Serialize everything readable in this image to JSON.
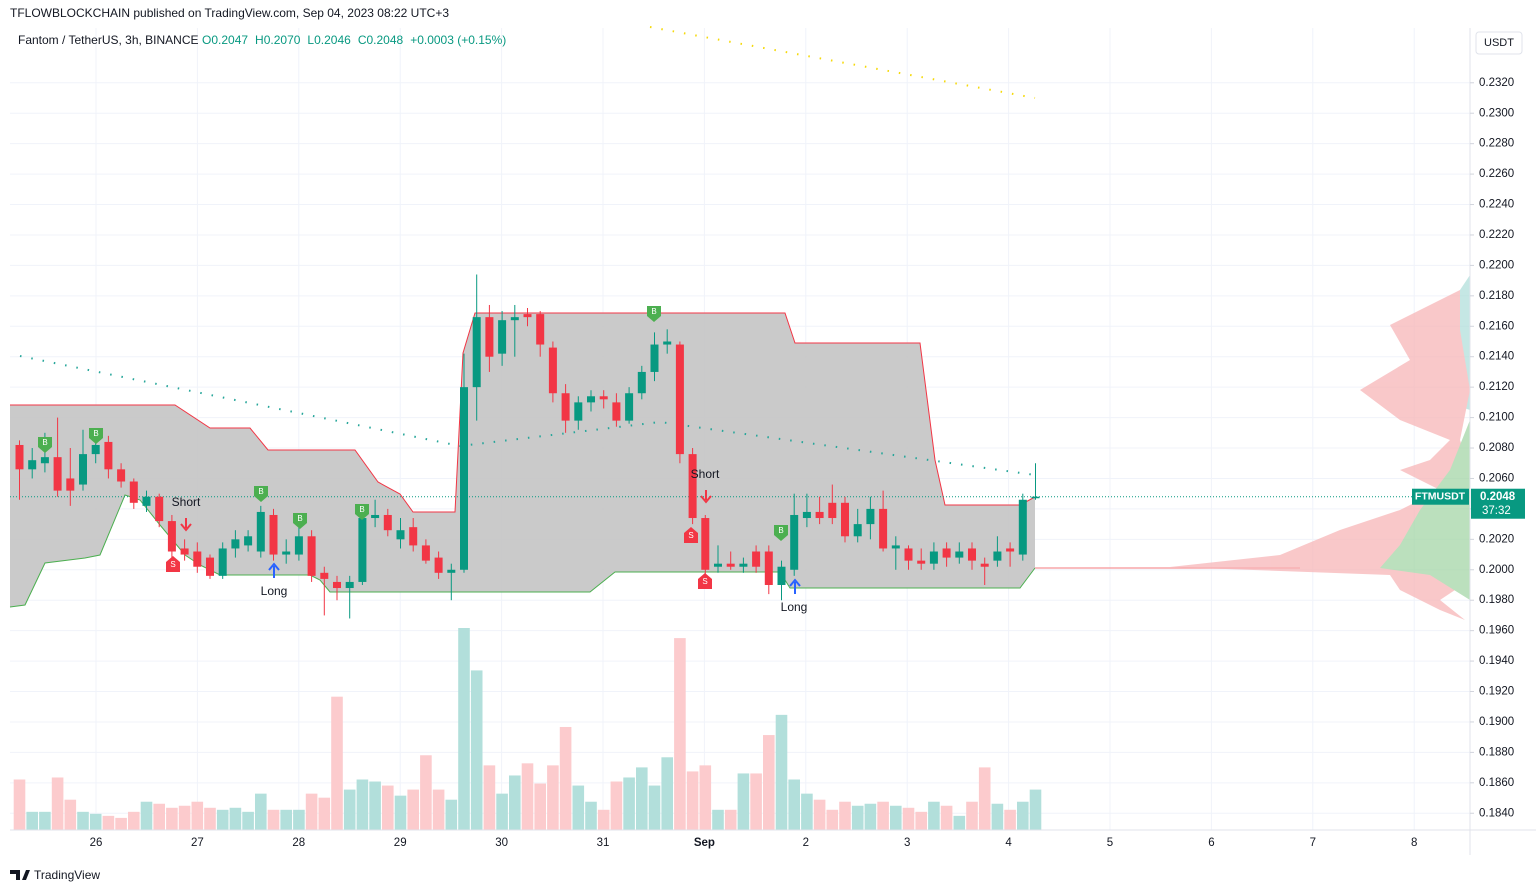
{
  "chart_data": {
    "type": "candlestick",
    "title": "TFLOWBLOCKCHAIN published on TradingView.com, Sep 04, 2023 08:22 UTC+3",
    "symbol": "Fantom / TetherUS, 3h, BINANCE",
    "ohlc_labels": [
      "O0.2047",
      "H0.2070",
      "L0.2046",
      "C0.2048"
    ],
    "change": "+0.0003 (+0.15%)",
    "currency": "USDT",
    "ticker": "FTMUSDT",
    "last_price": 0.2048,
    "countdown": "37:32",
    "brand": "TradingView",
    "annotations": {
      "buy": "B",
      "sell": "S",
      "short": "Short",
      "long": "Long"
    },
    "up_color": "#089981",
    "down_color": "#f23645",
    "volume_up_color": "#b2dfdb",
    "volume_down_color": "#fccbcd",
    "xtick_labels": [
      "26",
      "27",
      "28",
      "29",
      "30",
      "31",
      "Sep",
      "2",
      "3",
      "4",
      "5",
      "6",
      "7",
      "8"
    ],
    "ylim": [
      0.1829,
      0.2356
    ],
    "yticks": [
      {
        "value": 0.232,
        "label": "0.2320"
      },
      {
        "value": 0.23,
        "label": "0.2300"
      },
      {
        "value": 0.228,
        "label": "0.2280"
      },
      {
        "value": 0.226,
        "label": "0.2260"
      },
      {
        "value": 0.224,
        "label": "0.2240"
      },
      {
        "value": 0.222,
        "label": "0.2220"
      },
      {
        "value": 0.22,
        "label": "0.2200"
      },
      {
        "value": 0.218,
        "label": "0.2180"
      },
      {
        "value": 0.216,
        "label": "0.2160"
      },
      {
        "value": 0.214,
        "label": "0.2140"
      },
      {
        "value": 0.212,
        "label": "0.2120"
      },
      {
        "value": 0.21,
        "label": "0.2100"
      },
      {
        "value": 0.208,
        "label": "0.2080"
      },
      {
        "value": 0.206,
        "label": "0.2060"
      },
      {
        "value": 0.204,
        "label": "0.2040"
      },
      {
        "value": 0.202,
        "label": "0.2020"
      },
      {
        "value": 0.2,
        "label": "0.2000"
      },
      {
        "value": 0.198,
        "label": "0.1980"
      },
      {
        "value": 0.196,
        "label": "0.1960"
      },
      {
        "value": 0.194,
        "label": "0.1940"
      },
      {
        "value": 0.192,
        "label": "0.1920"
      },
      {
        "value": 0.19,
        "label": "0.1900"
      },
      {
        "value": 0.188,
        "label": "0.1880"
      },
      {
        "value": 0.186,
        "label": "0.1860"
      },
      {
        "value": 0.184,
        "label": "0.1840"
      }
    ],
    "grid": true,
    "ohlc": [
      [
        0.2082,
        0.2085,
        0.2046,
        0.2066
      ],
      [
        0.2066,
        0.208,
        0.206,
        0.2072
      ],
      [
        0.207,
        0.209,
        0.2064,
        0.2074
      ],
      [
        0.2074,
        0.21,
        0.2048,
        0.2052
      ],
      [
        0.206,
        0.208,
        0.2042,
        0.2052
      ],
      [
        0.2056,
        0.2092,
        0.2052,
        0.2076
      ],
      [
        0.2076,
        0.209,
        0.207,
        0.2082
      ],
      [
        0.2084,
        0.2088,
        0.206,
        0.2066
      ],
      [
        0.2066,
        0.207,
        0.2054,
        0.2058
      ],
      [
        0.2058,
        0.206,
        0.204,
        0.2044
      ],
      [
        0.2042,
        0.2052,
        0.2038,
        0.2048
      ],
      [
        0.2048,
        0.205,
        0.2028,
        0.2032
      ],
      [
        0.2032,
        0.2036,
        0.2004,
        0.2012
      ],
      [
        0.2014,
        0.202,
        0.2006,
        0.201
      ],
      [
        0.2012,
        0.2018,
        0.1998,
        0.2002
      ],
      [
        0.2008,
        0.201,
        0.1994,
        0.1996
      ],
      [
        0.1996,
        0.2018,
        0.1994,
        0.2014
      ],
      [
        0.2014,
        0.2026,
        0.2008,
        0.202
      ],
      [
        0.2016,
        0.2026,
        0.2012,
        0.2022
      ],
      [
        0.2012,
        0.2042,
        0.2008,
        0.2038
      ],
      [
        0.2036,
        0.204,
        0.2006,
        0.201
      ],
      [
        0.201,
        0.202,
        0.2004,
        0.2012
      ],
      [
        0.201,
        0.2028,
        0.2006,
        0.2022
      ],
      [
        0.2022,
        0.2026,
        0.1992,
        0.1996
      ],
      [
        0.1998,
        0.2002,
        0.197,
        0.1994
      ],
      [
        0.1992,
        0.1996,
        0.198,
        0.1988
      ],
      [
        0.1988,
        0.1996,
        0.1968,
        0.1992
      ],
      [
        0.1992,
        0.2038,
        0.199,
        0.2034
      ],
      [
        0.2034,
        0.2046,
        0.2028,
        0.2036
      ],
      [
        0.2036,
        0.204,
        0.2022,
        0.2026
      ],
      [
        0.202,
        0.2034,
        0.2014,
        0.2026
      ],
      [
        0.2028,
        0.2034,
        0.2012,
        0.2016
      ],
      [
        0.2016,
        0.202,
        0.2004,
        0.2006
      ],
      [
        0.2008,
        0.2012,
        0.1994,
        0.1998
      ],
      [
        0.1998,
        0.2004,
        0.198,
        0.2
      ],
      [
        0.2,
        0.2142,
        0.1998,
        0.212
      ],
      [
        0.212,
        0.2194,
        0.2098,
        0.2166
      ],
      [
        0.2166,
        0.2174,
        0.213,
        0.214
      ],
      [
        0.2142,
        0.217,
        0.2134,
        0.2164
      ],
      [
        0.2164,
        0.2174,
        0.214,
        0.2166
      ],
      [
        0.2168,
        0.2172,
        0.216,
        0.2166
      ],
      [
        0.2168,
        0.217,
        0.214,
        0.2148
      ],
      [
        0.2146,
        0.215,
        0.211,
        0.2116
      ],
      [
        0.2116,
        0.2122,
        0.209,
        0.2098
      ],
      [
        0.2098,
        0.2114,
        0.2092,
        0.211
      ],
      [
        0.211,
        0.2118,
        0.2104,
        0.2114
      ],
      [
        0.2114,
        0.2118,
        0.2106,
        0.2112
      ],
      [
        0.211,
        0.2116,
        0.2094,
        0.2098
      ],
      [
        0.2098,
        0.212,
        0.2096,
        0.2116
      ],
      [
        0.2116,
        0.2134,
        0.2112,
        0.213
      ],
      [
        0.213,
        0.2156,
        0.2124,
        0.2148
      ],
      [
        0.2148,
        0.2158,
        0.2142,
        0.215
      ],
      [
        0.2148,
        0.215,
        0.207,
        0.2076
      ],
      [
        0.2076,
        0.208,
        0.203,
        0.2034
      ],
      [
        0.2034,
        0.2036,
        0.1996,
        0.2
      ],
      [
        0.2002,
        0.2016,
        0.1998,
        0.2004
      ],
      [
        0.2004,
        0.2012,
        0.2,
        0.2002
      ],
      [
        0.2002,
        0.2008,
        0.1998,
        0.2004
      ],
      [
        0.2012,
        0.2016,
        0.1998,
        0.2002
      ],
      [
        0.2012,
        0.2016,
        0.1984,
        0.199
      ],
      [
        0.199,
        0.2006,
        0.198,
        0.2002
      ],
      [
        0.2,
        0.205,
        0.1996,
        0.2036
      ],
      [
        0.2034,
        0.205,
        0.2028,
        0.2038
      ],
      [
        0.2038,
        0.2048,
        0.203,
        0.2034
      ],
      [
        0.2044,
        0.2056,
        0.203,
        0.2034
      ],
      [
        0.2044,
        0.2048,
        0.2018,
        0.2022
      ],
      [
        0.2022,
        0.204,
        0.2018,
        0.203
      ],
      [
        0.203,
        0.2048,
        0.202,
        0.204
      ],
      [
        0.204,
        0.2052,
        0.2012,
        0.2014
      ],
      [
        0.2014,
        0.2022,
        0.2,
        0.2016
      ],
      [
        0.2014,
        0.2016,
        0.2,
        0.2006
      ],
      [
        0.2006,
        0.2014,
        0.2,
        0.2004
      ],
      [
        0.2004,
        0.2018,
        0.2,
        0.2012
      ],
      [
        0.2014,
        0.2018,
        0.2002,
        0.2008
      ],
      [
        0.2008,
        0.2018,
        0.2004,
        0.2012
      ],
      [
        0.2014,
        0.2018,
        0.2,
        0.2006
      ],
      [
        0.2004,
        0.2008,
        0.199,
        0.2002
      ],
      [
        0.2006,
        0.2022,
        0.2002,
        0.2012
      ],
      [
        0.2014,
        0.2018,
        0.2002,
        0.2012
      ],
      [
        0.201,
        0.205,
        0.2006,
        0.2046
      ],
      [
        0.2047,
        0.207,
        0.2046,
        0.2048
      ]
    ],
    "volume": [
      50,
      18,
      18,
      52,
      30,
      18,
      16,
      14,
      12,
      18,
      28,
      26,
      22,
      24,
      28,
      22,
      20,
      22,
      18,
      36,
      20,
      20,
      20,
      36,
      32,
      132,
      40,
      50,
      48,
      44,
      34,
      40,
      74,
      40,
      30,
      200,
      158,
      64,
      36,
      54,
      66,
      46,
      64,
      102,
      44,
      28,
      20,
      48,
      52,
      62,
      44,
      72,
      190,
      58,
      64,
      20,
      20,
      56,
      56,
      94,
      114,
      50,
      36,
      30,
      20,
      28,
      24,
      26,
      28,
      24,
      22,
      18,
      28,
      24,
      14,
      28,
      62,
      26,
      20,
      28,
      40
    ]
  }
}
